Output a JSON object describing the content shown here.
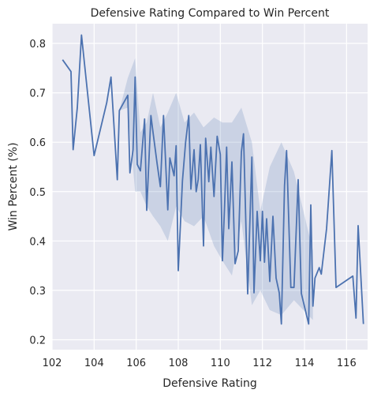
{
  "chart_data": {
    "type": "line",
    "title": "Defensive Rating Compared to Win Percent",
    "xlabel": "Defensive Rating",
    "ylabel": "Win Percent (%)",
    "xlim": [
      102,
      117
    ],
    "ylim": [
      0.18,
      0.84
    ],
    "x_ticks": [
      102,
      104,
      106,
      108,
      110,
      112,
      114,
      116
    ],
    "y_ticks": [
      0.2,
      0.3,
      0.4,
      0.5,
      0.6,
      0.7,
      0.8
    ],
    "grid": true,
    "colors": {
      "background": "#eaeaf2",
      "grid": "#ffffff",
      "line": "#4c72b0",
      "band": "#4c72b0"
    },
    "series": [
      {
        "values": [
          [
            102.5,
            0.767
          ],
          [
            102.9,
            0.743
          ],
          [
            103.0,
            0.585
          ],
          [
            103.2,
            0.67
          ],
          [
            103.4,
            0.817
          ],
          [
            104.0,
            0.573
          ],
          [
            104.6,
            0.68
          ],
          [
            104.8,
            0.732
          ],
          [
            105.1,
            0.524
          ],
          [
            105.2,
            0.664
          ],
          [
            105.6,
            0.695
          ],
          [
            105.7,
            0.538
          ],
          [
            105.85,
            0.585
          ],
          [
            105.95,
            0.732
          ],
          [
            106.05,
            0.555
          ],
          [
            106.2,
            0.542
          ],
          [
            106.4,
            0.647
          ],
          [
            106.5,
            0.462
          ],
          [
            106.7,
            0.654
          ],
          [
            106.8,
            0.62
          ],
          [
            107.0,
            0.555
          ],
          [
            107.15,
            0.51
          ],
          [
            107.3,
            0.654
          ],
          [
            107.5,
            0.463
          ],
          [
            107.6,
            0.568
          ],
          [
            107.8,
            0.532
          ],
          [
            107.9,
            0.593
          ],
          [
            108.0,
            0.34
          ],
          [
            108.2,
            0.522
          ],
          [
            108.35,
            0.6
          ],
          [
            108.5,
            0.654
          ],
          [
            108.6,
            0.505
          ],
          [
            108.75,
            0.585
          ],
          [
            108.85,
            0.5
          ],
          [
            108.95,
            0.525
          ],
          [
            109.05,
            0.595
          ],
          [
            109.2,
            0.39
          ],
          [
            109.3,
            0.608
          ],
          [
            109.45,
            0.52
          ],
          [
            109.55,
            0.59
          ],
          [
            109.7,
            0.49
          ],
          [
            109.85,
            0.612
          ],
          [
            110.0,
            0.575
          ],
          [
            110.1,
            0.36
          ],
          [
            110.2,
            0.47
          ],
          [
            110.3,
            0.59
          ],
          [
            110.4,
            0.425
          ],
          [
            110.55,
            0.56
          ],
          [
            110.7,
            0.354
          ],
          [
            110.85,
            0.38
          ],
          [
            111.0,
            0.58
          ],
          [
            111.1,
            0.617
          ],
          [
            111.3,
            0.293
          ],
          [
            111.5,
            0.57
          ],
          [
            111.6,
            0.295
          ],
          [
            111.75,
            0.46
          ],
          [
            111.9,
            0.36
          ],
          [
            112.0,
            0.46
          ],
          [
            112.1,
            0.357
          ],
          [
            112.2,
            0.445
          ],
          [
            112.35,
            0.318
          ],
          [
            112.5,
            0.45
          ],
          [
            112.65,
            0.325
          ],
          [
            112.8,
            0.295
          ],
          [
            112.9,
            0.232
          ],
          [
            113.05,
            0.512
          ],
          [
            113.15,
            0.583
          ],
          [
            113.35,
            0.306
          ],
          [
            113.5,
            0.306
          ],
          [
            113.7,
            0.524
          ],
          [
            113.85,
            0.294
          ],
          [
            114.2,
            0.232
          ],
          [
            114.3,
            0.473
          ],
          [
            114.4,
            0.268
          ],
          [
            114.5,
            0.325
          ],
          [
            114.7,
            0.346
          ],
          [
            114.8,
            0.333
          ],
          [
            115.05,
            0.425
          ],
          [
            115.3,
            0.583
          ],
          [
            115.5,
            0.306
          ],
          [
            116.3,
            0.329
          ],
          [
            116.45,
            0.244
          ],
          [
            116.55,
            0.431
          ],
          [
            116.8,
            0.232
          ]
        ]
      }
    ],
    "band": [
      [
        105.2,
        0.664,
        0.664
      ],
      [
        105.6,
        0.67,
        0.73
      ],
      [
        105.95,
        0.5,
        0.77
      ],
      [
        106.2,
        0.5,
        0.62
      ],
      [
        106.5,
        0.47,
        0.64
      ],
      [
        106.8,
        0.45,
        0.7
      ],
      [
        107.15,
        0.43,
        0.63
      ],
      [
        107.5,
        0.4,
        0.66
      ],
      [
        107.9,
        0.47,
        0.7
      ],
      [
        108.3,
        0.44,
        0.64
      ],
      [
        108.75,
        0.43,
        0.66
      ],
      [
        109.2,
        0.45,
        0.63
      ],
      [
        109.7,
        0.39,
        0.65
      ],
      [
        110.1,
        0.36,
        0.64
      ],
      [
        110.55,
        0.33,
        0.64
      ],
      [
        111.0,
        0.44,
        0.67
      ],
      [
        111.5,
        0.27,
        0.6
      ],
      [
        111.9,
        0.3,
        0.46
      ],
      [
        112.35,
        0.26,
        0.55
      ],
      [
        112.9,
        0.25,
        0.6
      ],
      [
        113.5,
        0.28,
        0.54
      ],
      [
        114.4,
        0.24,
        0.38
      ]
    ]
  }
}
